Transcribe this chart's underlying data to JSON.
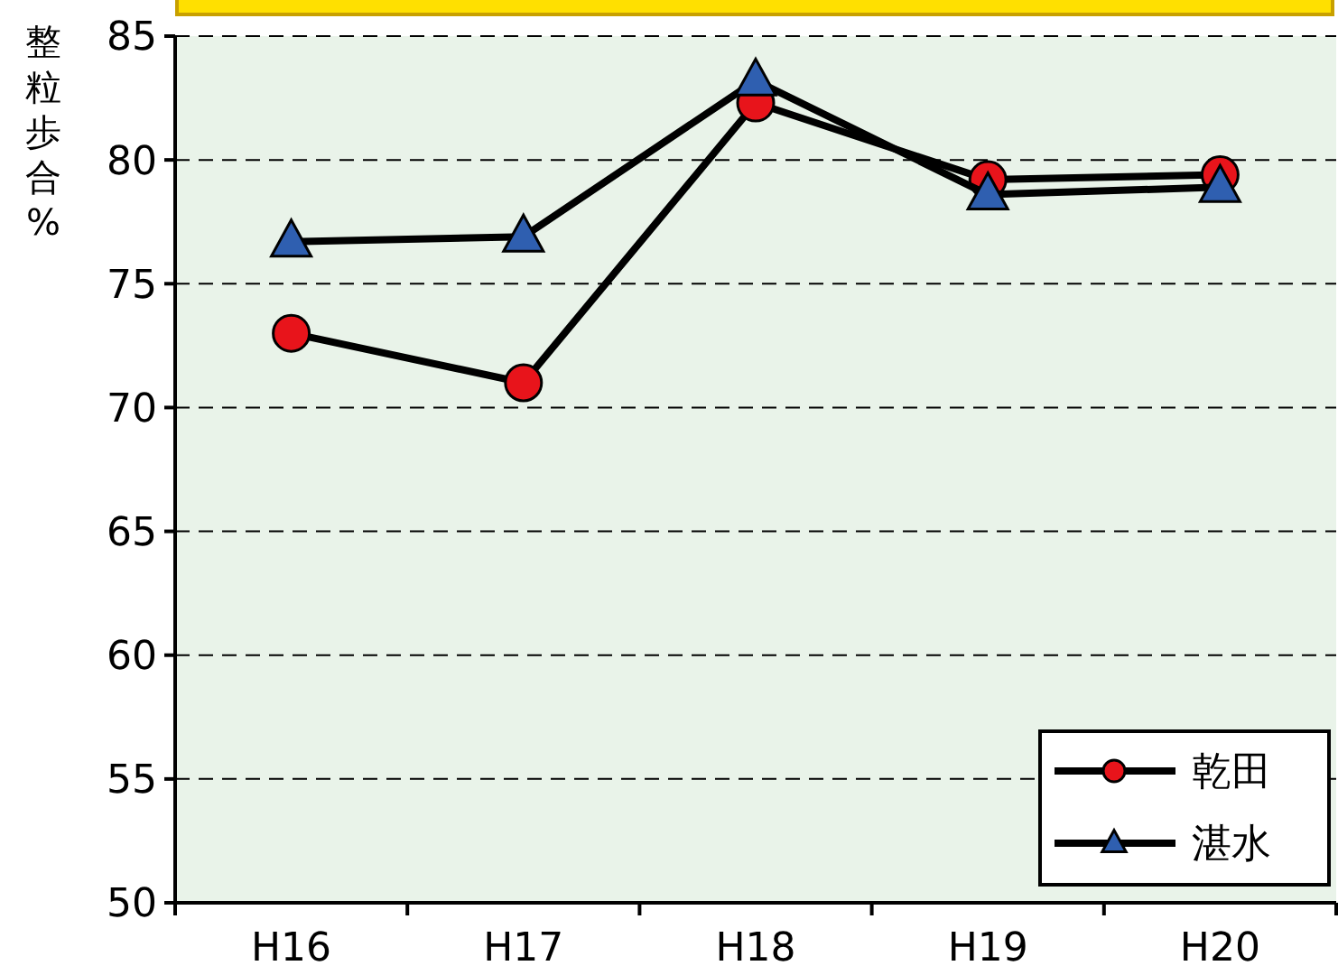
{
  "chart_data": {
    "type": "line",
    "ylabel": "整粒歩合%",
    "categories": [
      "H16",
      "H17",
      "H18",
      "H19",
      "H20"
    ],
    "series": [
      {
        "name": "乾田",
        "color": "#e8141b",
        "marker": "circle",
        "values": [
          73.0,
          71.0,
          82.3,
          79.2,
          79.4
        ]
      },
      {
        "name": "湛水",
        "color": "#2f5fb0",
        "marker": "triangle",
        "values": [
          76.7,
          76.9,
          83.2,
          78.6,
          78.9
        ]
      }
    ],
    "ylim": [
      50,
      85
    ],
    "yticks": [
      50,
      55,
      60,
      65,
      70,
      75,
      80,
      85
    ],
    "grid": "y",
    "legend": "bottom right"
  }
}
